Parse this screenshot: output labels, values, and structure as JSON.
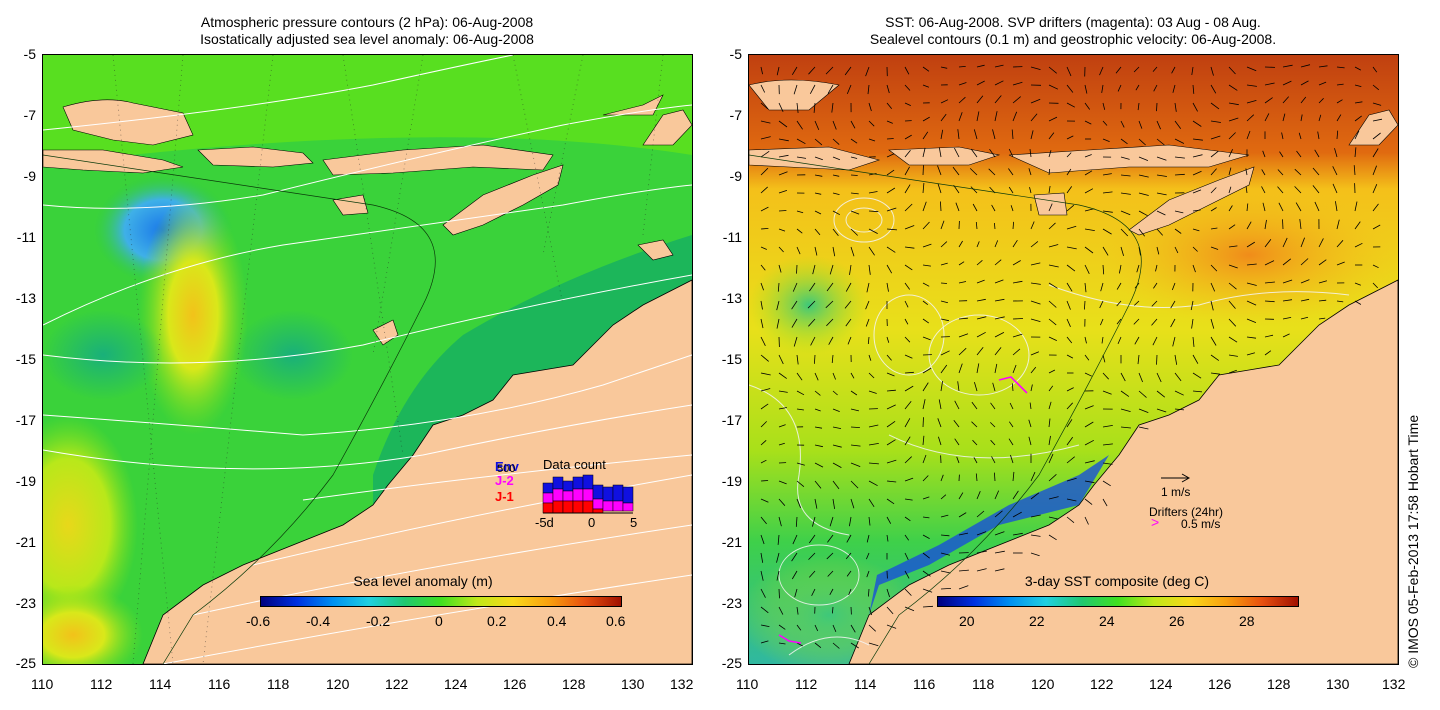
{
  "left_panel": {
    "title_line1": "Atmospheric pressure contours (2 hPa): 06-Aug-2008",
    "title_line2": "Isostatically adjusted sea level anomaly: 06-Aug-2008",
    "x_ticks": [
      "110",
      "112",
      "114",
      "116",
      "118",
      "120",
      "122",
      "124",
      "126",
      "128",
      "130",
      "132"
    ],
    "y_ticks": [
      "-5",
      "-7",
      "-9",
      "-11",
      "-13",
      "-15",
      "-17",
      "-19",
      "-21",
      "-23",
      "-25"
    ],
    "colorbar": {
      "title": "Sea level anomaly (m)",
      "labels": [
        "-0.6",
        "-0.4",
        "-0.2",
        "0",
        "0.2",
        "0.4",
        "0.6"
      ],
      "range": [
        -0.6,
        0.6
      ]
    },
    "data_count": {
      "title": "Data count",
      "legend": [
        "Env",
        "J-2",
        "J-1"
      ],
      "legend_colors": [
        "#1010e0",
        "#ff00ff",
        "#ff0000"
      ],
      "x_labels": [
        "-5d",
        "0",
        "5"
      ],
      "overlap_label": "500"
    }
  },
  "right_panel": {
    "title_line1": "SST: 06-Aug-2008. SVP drifters (magenta): 03 Aug - 08 Aug.",
    "title_line2": "Sealevel contours (0.1 m) and geostrophic velocity: 06-Aug-2008.",
    "x_ticks": [
      "110",
      "112",
      "114",
      "116",
      "118",
      "120",
      "122",
      "124",
      "126",
      "128",
      "130",
      "132"
    ],
    "y_ticks": [
      "-5",
      "-7",
      "-9",
      "-11",
      "-13",
      "-15",
      "-17",
      "-19",
      "-21",
      "-23",
      "-25"
    ],
    "colorbar": {
      "title": "3-day SST composite (deg C)",
      "labels": [
        "20",
        "22",
        "24",
        "26",
        "28"
      ],
      "range": [
        19,
        29
      ]
    },
    "scale_vector_label": "1 m/s",
    "drifters_label": "Drifters (24hr)",
    "drifter_speed_label": "0.5 m/s"
  },
  "credit": "© IMOS 05-Feb-2013 17:58 Hobart Time",
  "colors": {
    "land": "#f9c89b",
    "ocean_green": "#2ec84a",
    "sst_orange": "#e87a1c",
    "drifter": "#ff00ff"
  }
}
